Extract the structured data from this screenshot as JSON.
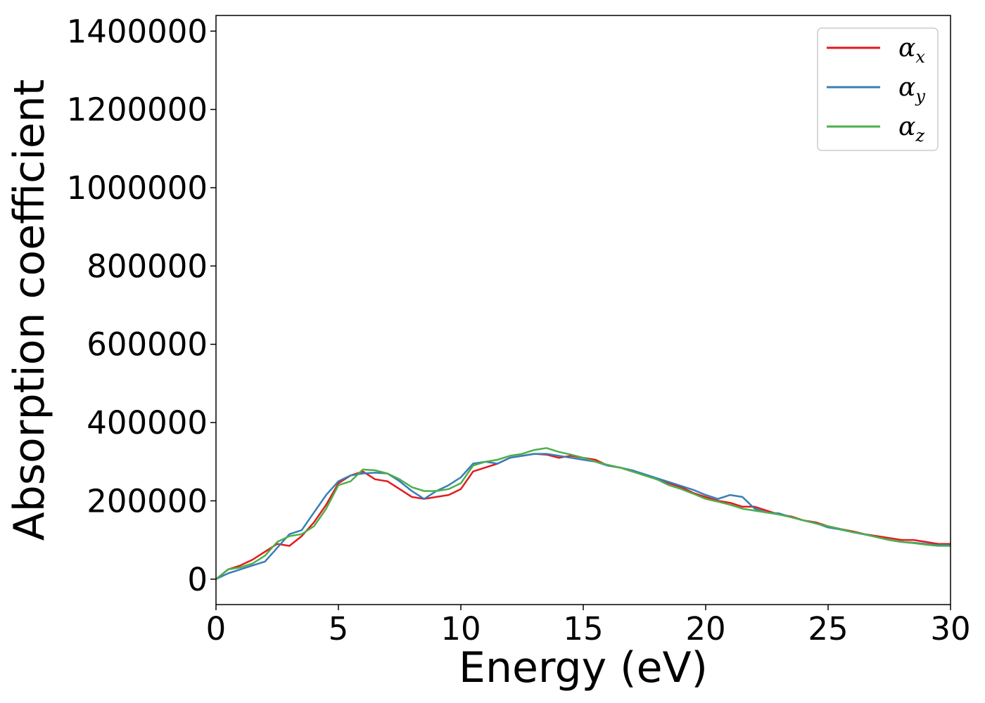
{
  "chart_data": {
    "type": "line",
    "xlabel": "Energy (eV)",
    "ylabel": "Absorption coefficient",
    "xlim": [
      0,
      30
    ],
    "ylim": [
      -65000,
      1440000
    ],
    "xticks": [
      0,
      5,
      10,
      15,
      20,
      25,
      30
    ],
    "xtick_labels": [
      "0",
      "5",
      "10",
      "15",
      "20",
      "25",
      "30"
    ],
    "yticks": [
      0,
      200000,
      400000,
      600000,
      800000,
      1000000,
      1200000,
      1400000
    ],
    "ytick_labels": [
      "0",
      "200000",
      "400000",
      "600000",
      "800000",
      "1000000",
      "1200000",
      "1400000"
    ],
    "grid": false,
    "legend_position": "top-right",
    "x": [
      0,
      0.5,
      1,
      1.5,
      2,
      2.5,
      3,
      3.5,
      4,
      4.5,
      5,
      5.5,
      6,
      6.5,
      7,
      7.5,
      8,
      8.5,
      9,
      9.5,
      10,
      10.5,
      11,
      11.5,
      12,
      12.5,
      13,
      13.5,
      14,
      14.5,
      15,
      15.5,
      16,
      16.5,
      17,
      17.5,
      18,
      18.5,
      19,
      19.5,
      20,
      20.5,
      21,
      21.5,
      22,
      22.5,
      23,
      23.5,
      24,
      24.5,
      25,
      25.5,
      26,
      26.5,
      27,
      27.5,
      28,
      28.5,
      29,
      29.5,
      30
    ],
    "series": [
      {
        "name": "α",
        "subscript": "x",
        "color": "#e41a1c",
        "values": [
          0,
          25000,
          35000,
          50000,
          70000,
          90000,
          85000,
          110000,
          145000,
          190000,
          245000,
          265000,
          275000,
          255000,
          250000,
          230000,
          210000,
          205000,
          210000,
          215000,
          230000,
          275000,
          285000,
          295000,
          310000,
          315000,
          320000,
          318000,
          310000,
          315000,
          310000,
          305000,
          290000,
          285000,
          275000,
          268000,
          255000,
          245000,
          235000,
          220000,
          210000,
          200000,
          195000,
          185000,
          185000,
          175000,
          165000,
          160000,
          150000,
          145000,
          135000,
          128000,
          122000,
          115000,
          110000,
          105000,
          100000,
          100000,
          95000,
          90000,
          90000
        ]
      },
      {
        "name": "α",
        "subscript": "y",
        "color": "#377eb8",
        "values": [
          0,
          15000,
          25000,
          35000,
          45000,
          80000,
          115000,
          125000,
          170000,
          215000,
          250000,
          265000,
          270000,
          272000,
          270000,
          250000,
          225000,
          205000,
          225000,
          240000,
          260000,
          295000,
          300000,
          295000,
          310000,
          315000,
          320000,
          320000,
          315000,
          310000,
          305000,
          300000,
          290000,
          285000,
          278000,
          268000,
          258000,
          248000,
          238000,
          228000,
          215000,
          205000,
          215000,
          210000,
          180000,
          170000,
          168000,
          158000,
          150000,
          143000,
          132000,
          127000,
          120000,
          114000,
          107000,
          100000,
          95000,
          93000,
          90000,
          87000,
          87000
        ]
      },
      {
        "name": "α",
        "subscript": "z",
        "color": "#4daf4a",
        "values": [
          0,
          25000,
          30000,
          40000,
          60000,
          95000,
          110000,
          115000,
          135000,
          180000,
          240000,
          250000,
          280000,
          278000,
          270000,
          255000,
          235000,
          225000,
          225000,
          230000,
          245000,
          290000,
          300000,
          305000,
          315000,
          320000,
          330000,
          335000,
          325000,
          318000,
          310000,
          300000,
          292000,
          285000,
          275000,
          265000,
          255000,
          240000,
          230000,
          218000,
          205000,
          198000,
          190000,
          180000,
          175000,
          170000,
          165000,
          158000,
          150000,
          142000,
          135000,
          128000,
          120000,
          115000,
          107000,
          100000,
          95000,
          92000,
          88000,
          85000,
          85000
        ]
      }
    ]
  }
}
